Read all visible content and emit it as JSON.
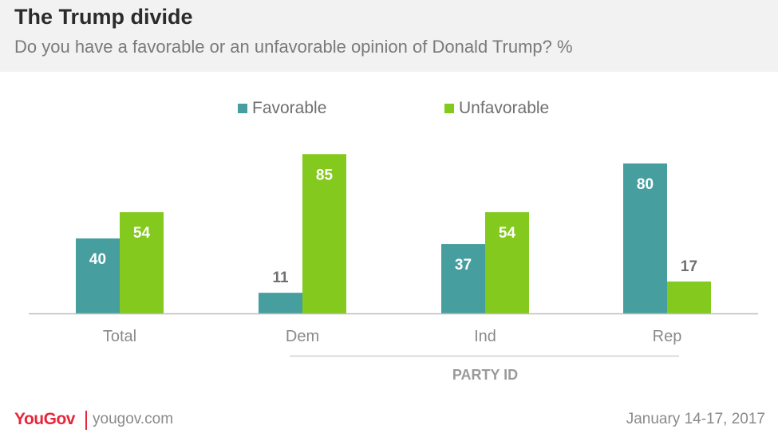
{
  "header": {
    "title": "The Trump divide",
    "subtitle": "Do you have a favorable or an unfavorable opinion of Donald Trump? %"
  },
  "legend": [
    {
      "label": "Favorable",
      "color": "#479e9e"
    },
    {
      "label": "Unfavorable",
      "color": "#84c91d"
    }
  ],
  "chart_data": {
    "type": "bar",
    "title": "The Trump divide",
    "subtitle": "Do you have a favorable or an unfavorable opinion of Donald Trump? %",
    "categories": [
      "Total",
      "Dem",
      "Ind",
      "Rep"
    ],
    "series": [
      {
        "name": "Favorable",
        "values": [
          40,
          11,
          37,
          80
        ],
        "color": "#479e9e"
      },
      {
        "name": "Unfavorable",
        "values": [
          54,
          85,
          54,
          17
        ],
        "color": "#84c91d"
      }
    ],
    "group_label": "PARTY ID",
    "xlabel": "",
    "ylabel": "",
    "ylim": [
      0,
      100
    ],
    "grid": false,
    "legend_position": "top-center"
  },
  "footer": {
    "brand": "YouGov",
    "site": "yougov.com",
    "date": "January 14-17, 2017"
  }
}
